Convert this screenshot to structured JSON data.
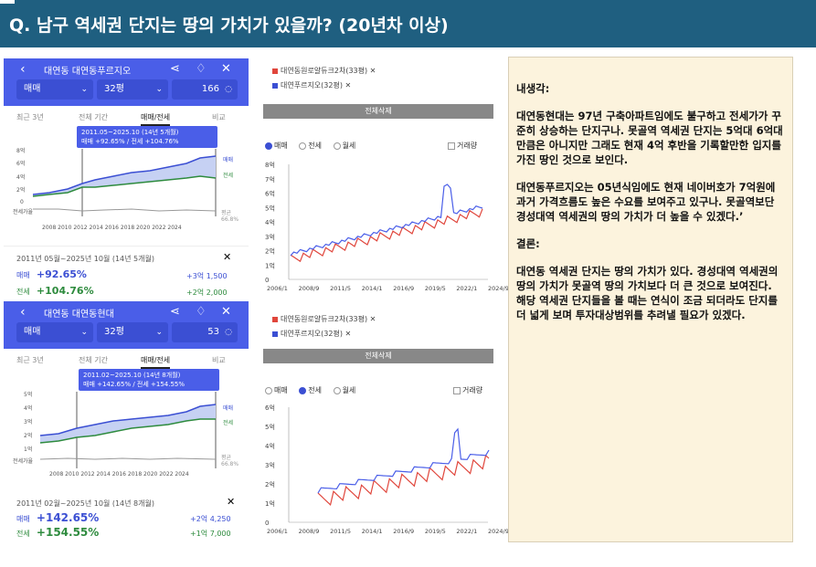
{
  "title": "Q. 남구 역세권 단지는 땅의 가치가 있을까? (20년차 이상)",
  "panel1": {
    "complex": "대연동 대연동푸르지오",
    "deal_type": "매매",
    "size": "32평",
    "count": "166",
    "tabs": [
      "최근 3년",
      "전체 기간",
      "매매/전세",
      "비교"
    ],
    "tooltip_period": "2011.05~2025.10 (14년 5개월)",
    "tooltip_values": "매매 +92.65%  /  전세 +104.76%",
    "y_ticks": [
      "8억",
      "6억",
      "4억",
      "2억",
      "0"
    ],
    "x_ticks": "2008 2010 2012 2014 2016 2018 2020 2022 2024",
    "jeonse_rate_label": "전세가율",
    "side_labels": [
      "매매",
      "전세"
    ],
    "ratio_label": "평균\n66.8%",
    "summary_period": "2011년 05월~2025년 10월 (14년 5개월)",
    "sale_label": "매매",
    "sale_pct": "+92.65%",
    "sale_amt": "+3억 1,500",
    "jeonse_label": "전세",
    "jeonse_pct": "+104.76%",
    "jeonse_amt": "+2억 2,000"
  },
  "panel2": {
    "complex": "대연동 대연동현대",
    "deal_type": "매매",
    "size": "32평",
    "count": "53",
    "tabs": [
      "최근 3년",
      "전체 기간",
      "매매/전세",
      "비교"
    ],
    "tooltip_period": "2011.02~2025.10 (14년 8개월)",
    "tooltip_values": "매매 +142.65%  /  전세 +154.55%",
    "y_ticks": [
      "5억",
      "4억",
      "3억",
      "2억",
      "1억"
    ],
    "x_ticks": "2008 2010 2012 2014 2016 2018 2020 2022 2024",
    "jeonse_rate_label": "전세가율",
    "side_labels": [
      "매매",
      "전세"
    ],
    "ratio_label": "평균\n66.8%",
    "summary_period": "2011년 02월~2025년 10월 (14년 8개월)",
    "sale_label": "매매",
    "sale_pct": "+142.65%",
    "sale_amt": "+2억 4,250",
    "jeonse_label": "전세",
    "jeonse_pct": "+154.55%",
    "jeonse_amt": "+1억 7,000"
  },
  "compare1": {
    "legend": [
      "대연동원로얄듀크2차(33평)",
      "대연푸르지오(32평)"
    ],
    "clear_label": "전체삭제",
    "radios": [
      "매매",
      "전세",
      "월세"
    ],
    "selected": 0,
    "checkbox_label": "거래량",
    "y_ticks": [
      "8억",
      "7억",
      "6억",
      "5억",
      "4억",
      "3억",
      "2억",
      "1억",
      "0"
    ],
    "x_ticks": [
      "2006/1",
      "2008/9",
      "2011/5",
      "2014/1",
      "2016/9",
      "2019/5",
      "2022/1",
      "2024/9"
    ]
  },
  "compare2": {
    "legend": [
      "대연동원로얄듀크2차(33평)",
      "대연푸르지오(32평)"
    ],
    "clear_label": "전체삭제",
    "radios": [
      "매매",
      "전세",
      "월세"
    ],
    "selected": 1,
    "checkbox_label": "거래량",
    "y_ticks": [
      "6억",
      "5억",
      "4억",
      "3억",
      "2억",
      "1억",
      "0"
    ],
    "x_ticks": [
      "2006/1",
      "2008/9",
      "2011/5",
      "2014/1",
      "2016/9",
      "2019/5",
      "2022/1",
      "2024/9"
    ]
  },
  "notes": {
    "heading1": "내생각:",
    "para1": "대연동현대는 97년 구축아파트임에도 불구하고 전세가가 꾸준히 상승하는 단지구나. 못골역 역세권 단지는 5억대 6억대만큼은 아니지만 그래도 현재 4억 후반을 기록할만한 입지를 가진 땅인 것으로 보인다.",
    "para2": "대연동푸르지오는 05년식임에도 현재 네이버호가 7억원에 과거 가격흐름도 높은 수요를 보여주고 있구나. 못골역보단 경성대역 역세권의 땅의 가치가 더 높을 수 있겠다.’",
    "heading2": "결론:",
    "para3": "대연동 역세권 단지는 땅의 가치가 있다. 경성대역 역세권의 땅의 가치가 못골역 땅의 가치보다 더 큰 것으로 보여진다. 해당 역세권 단지들을 볼 때는 연식이 조금 되더라도 단지를 더 넓게 보며 투자대상범위를 추려낼 필요가 있겠다."
  },
  "colors": {
    "title_bg": "#1f5f80",
    "brand_blue": "#4a5ee8",
    "sale_blue": "#3b4fd3",
    "jeonse_green": "#2e8b3e",
    "series_red": "#e0463c",
    "series_blue": "#4a5ee8",
    "notes_bg": "#fcf3dd"
  }
}
